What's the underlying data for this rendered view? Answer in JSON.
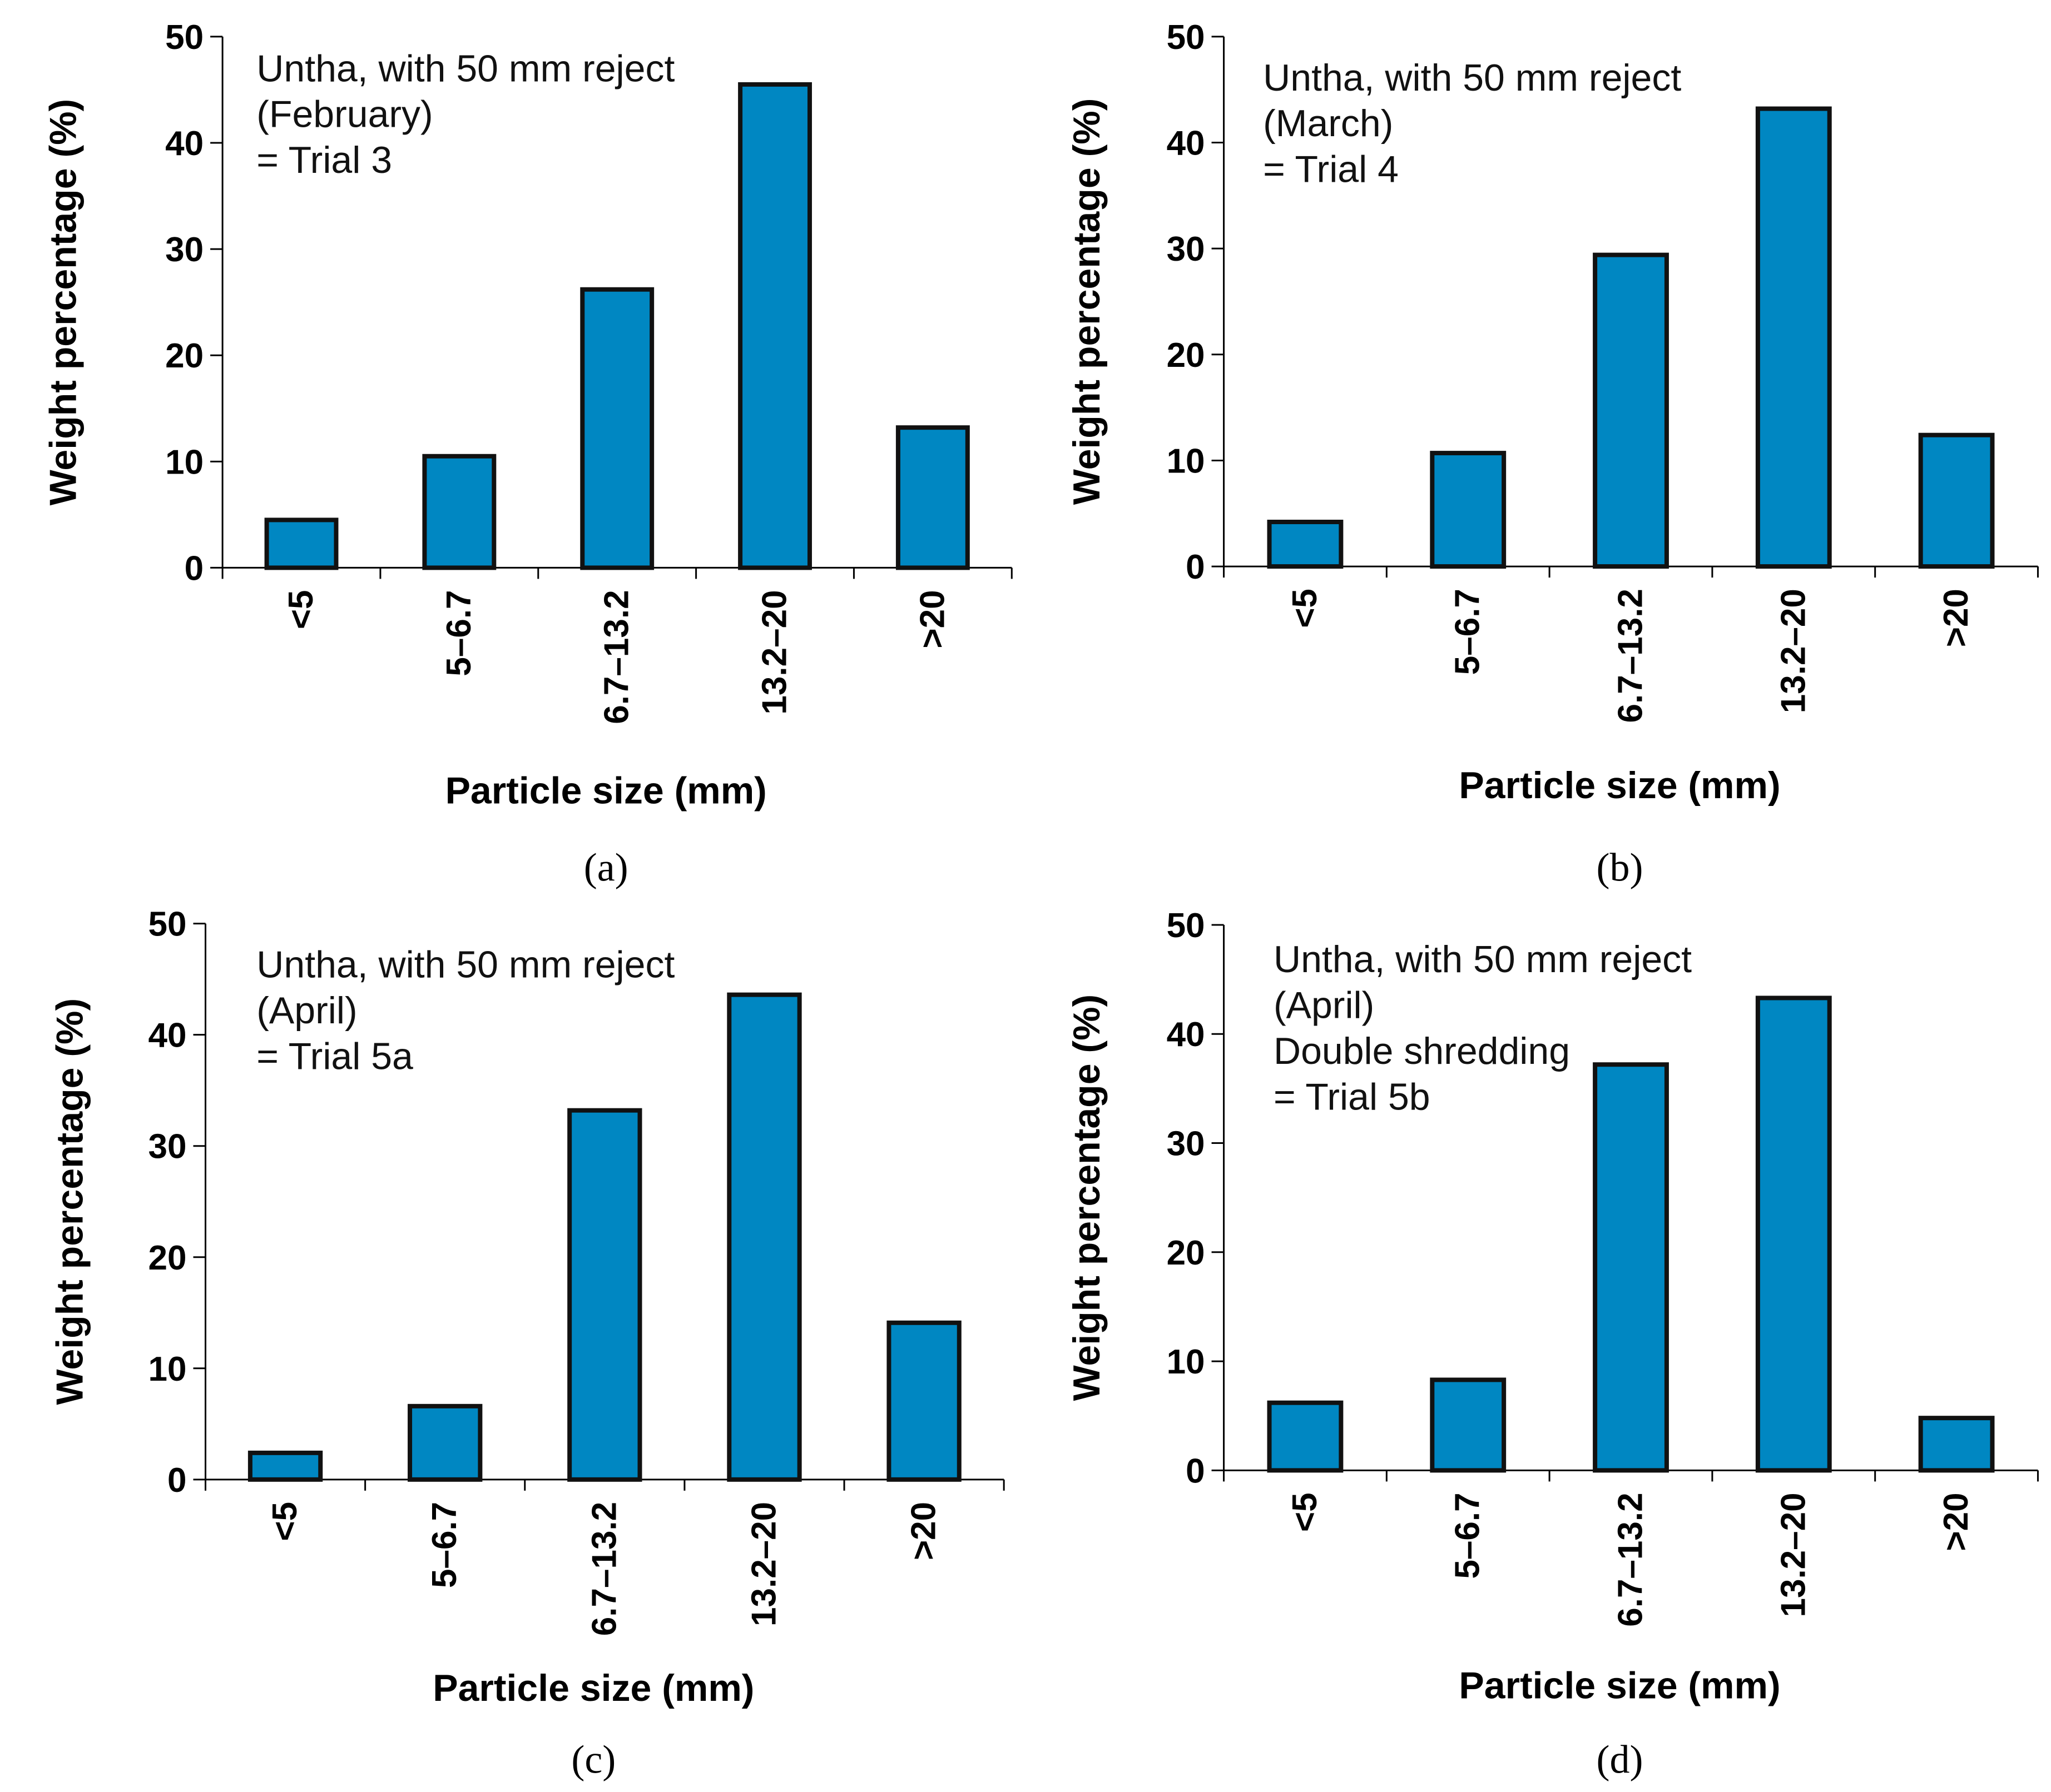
{
  "figure": {
    "bar_color": "#0087C2",
    "bar_edge_color": "#111111"
  },
  "chart_data": [
    {
      "type": "bar",
      "panel_label": "(a)",
      "annotation": [
        "Untha, with 50 mm reject",
        "(February)",
        "= Trial 3"
      ],
      "categories": [
        "<5",
        "5–6.7",
        "6.7–13.2",
        "13.2–20",
        ">20"
      ],
      "values": [
        4.5,
        10.5,
        26.2,
        45.5,
        13.2
      ],
      "xlabel": "Particle size (mm)",
      "ylabel": "Weight percentage (%)",
      "ylim": [
        0,
        50
      ],
      "yticks": [
        0,
        10,
        20,
        30,
        40,
        50
      ],
      "grid": false,
      "legend": "none"
    },
    {
      "type": "bar",
      "panel_label": "(b)",
      "annotation": [
        "Untha, with 50 mm reject",
        "(March)",
        "= Trial 4"
      ],
      "categories": [
        "<5",
        "5–6.7",
        "6.7–13.2",
        "13.2–20",
        ">20"
      ],
      "values": [
        4.2,
        10.7,
        29.4,
        43.2,
        12.4
      ],
      "xlabel": "Particle size (mm)",
      "ylabel": "Weight percentage (%)",
      "ylim": [
        0,
        50
      ],
      "yticks": [
        0,
        10,
        20,
        30,
        40,
        50
      ],
      "grid": false,
      "legend": "none"
    },
    {
      "type": "bar",
      "panel_label": "(c)",
      "annotation": [
        "Untha, with 50 mm reject",
        "(April)",
        "= Trial 5a"
      ],
      "categories": [
        "<5",
        "5–6.7",
        "6.7–13.2",
        "13.2–20",
        ">20"
      ],
      "values": [
        2.4,
        6.6,
        33.2,
        43.6,
        14.1
      ],
      "xlabel": "Particle size (mm)",
      "ylabel": "Weight percentage (%)",
      "ylim": [
        0,
        50
      ],
      "yticks": [
        0,
        10,
        20,
        30,
        40,
        50
      ],
      "grid": false,
      "legend": "none"
    },
    {
      "type": "bar",
      "panel_label": "(d)",
      "annotation": [
        "Untha, with 50 mm reject",
        "(April)",
        "Double shredding",
        "= Trial 5b"
      ],
      "categories": [
        "<5",
        "5–6.7",
        "6.7–13.2",
        "13.2–20",
        ">20"
      ],
      "values": [
        6.2,
        8.3,
        37.2,
        43.3,
        4.8
      ],
      "xlabel": "Particle size (mm)",
      "ylabel": "Weight percentage (%)",
      "ylim": [
        0,
        50
      ],
      "yticks": [
        0,
        10,
        20,
        30,
        40,
        50
      ],
      "grid": false,
      "legend": "none"
    }
  ]
}
